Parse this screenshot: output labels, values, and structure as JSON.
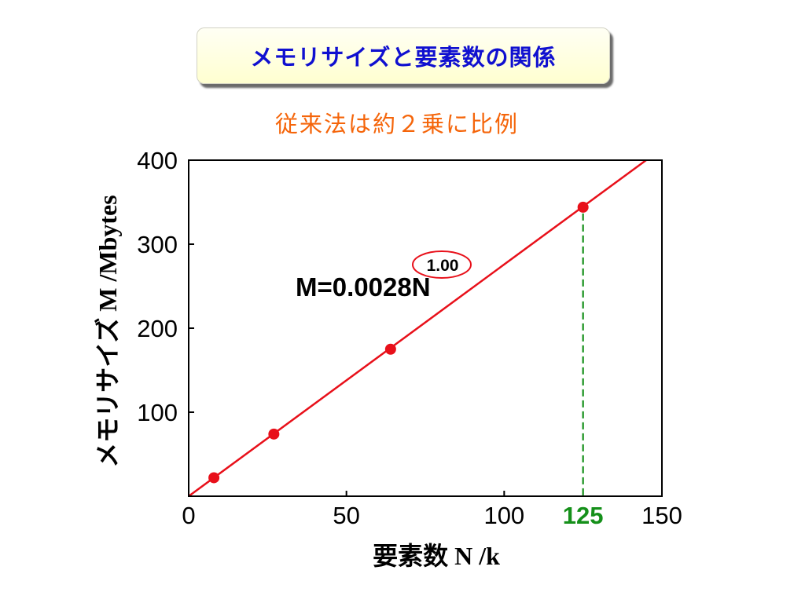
{
  "slide": {
    "title": "メモリサイズと要素数の関係",
    "subtitle": "従来法は約２乗に比例"
  },
  "colors": {
    "title_text": "#1010D0",
    "subtitle_text": "#F5650A",
    "series": "#E8101A",
    "reference": "#15901A",
    "axis": "#000000"
  },
  "chart_data": {
    "type": "scatter",
    "xlabel": {
      "main": "要素数",
      "unit": "N /k"
    },
    "ylabel": {
      "main": "メモリサイズ",
      "unit": "M /Mbytes"
    },
    "xlim": [
      0,
      150
    ],
    "ylim": [
      0,
      400
    ],
    "xticks": [
      0,
      50,
      100,
      150
    ],
    "yticks": [
      100,
      200,
      300,
      400
    ],
    "highlight_xtick": 125,
    "grid": false,
    "series": [
      {
        "x": [
          8,
          27,
          64,
          125
        ],
        "y": [
          22,
          74,
          175,
          344
        ]
      }
    ],
    "fit": {
      "equation": "M=0.0028N",
      "exponent": "1.00",
      "exponent_circled": true,
      "x": [
        0,
        145
      ],
      "y": [
        0,
        400
      ]
    },
    "reference_line": {
      "x": 125,
      "y": [
        0,
        344
      ]
    }
  }
}
